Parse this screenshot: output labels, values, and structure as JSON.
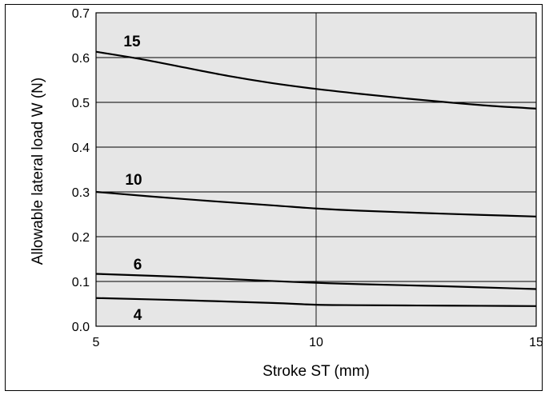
{
  "chart_data": {
    "type": "line",
    "xlabel": "Stroke ST (mm)",
    "ylabel": "Allowable lateral load W (N)",
    "xlim": [
      5,
      15
    ],
    "ylim": [
      0,
      0.7
    ],
    "xticks": [
      "5",
      "10",
      "15"
    ],
    "yticks": [
      "0.0",
      "0.1",
      "0.2",
      "0.3",
      "0.4",
      "0.5",
      "0.6",
      "0.7"
    ],
    "grid": true,
    "series": [
      {
        "name": "15",
        "x": [
          5,
          6,
          7,
          8,
          9,
          10,
          11,
          12,
          13,
          14,
          15
        ],
        "values": [
          0.613,
          0.597,
          0.578,
          0.559,
          0.543,
          0.53,
          0.519,
          0.509,
          0.5,
          0.492,
          0.486
        ]
      },
      {
        "name": "10",
        "x": [
          5,
          7,
          9,
          10,
          11,
          13,
          15
        ],
        "values": [
          0.3,
          0.284,
          0.27,
          0.263,
          0.258,
          0.251,
          0.245
        ]
      },
      {
        "name": "6",
        "x": [
          5,
          7,
          9,
          10,
          11,
          13,
          15
        ],
        "values": [
          0.117,
          0.11,
          0.101,
          0.097,
          0.094,
          0.089,
          0.083
        ]
      },
      {
        "name": "4",
        "x": [
          5,
          7,
          9,
          10,
          11,
          13,
          15
        ],
        "values": [
          0.063,
          0.058,
          0.052,
          0.048,
          0.047,
          0.046,
          0.045
        ]
      }
    ]
  }
}
